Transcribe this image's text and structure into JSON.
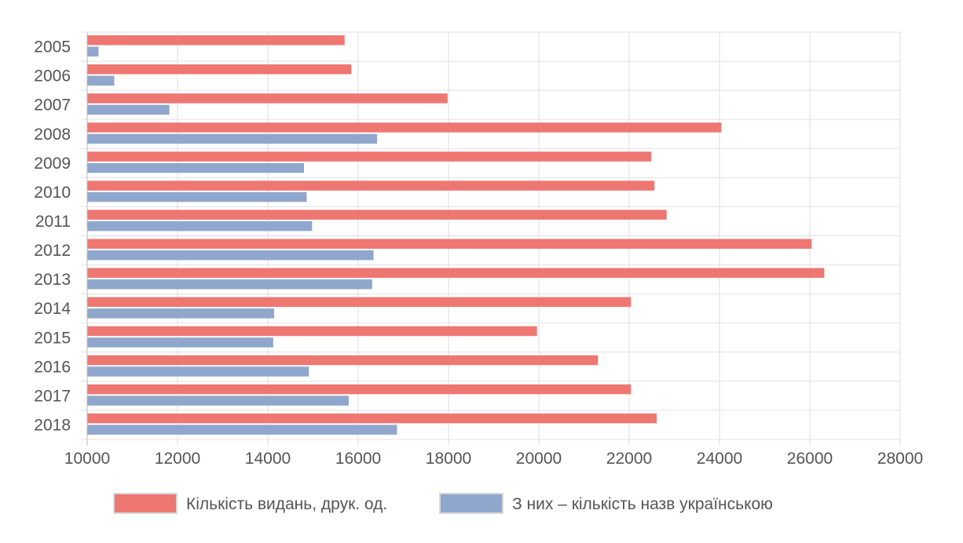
{
  "chart_data": {
    "type": "bar",
    "orientation": "horizontal",
    "categories": [
      "2005",
      "2006",
      "2007",
      "2008",
      "2009",
      "2010",
      "2011",
      "2012",
      "2013",
      "2014",
      "2015",
      "2016",
      "2017",
      "2018"
    ],
    "series": [
      {
        "name": "Кількість видань, друк. од.",
        "color": "#ee7772",
        "values": [
          15700,
          15850,
          17980,
          24040,
          22490,
          22560,
          22830,
          26040,
          26320,
          22040,
          19960,
          21310,
          22040,
          22610
        ]
      },
      {
        "name": "З них – кількість назв українською",
        "color": "#8fa7cc",
        "values": [
          10250,
          10600,
          11820,
          16420,
          14800,
          14860,
          14980,
          16340,
          16310,
          14140,
          14120,
          14910,
          15790,
          16860
        ]
      }
    ],
    "x_ticks": [
      "10000",
      "12000",
      "14000",
      "16000",
      "18000",
      "20000",
      "22000",
      "24000",
      "26000",
      "28000"
    ],
    "xlim": [
      10000,
      28000
    ],
    "grid": true,
    "legend": "bottom",
    "title": "",
    "xlabel": "",
    "ylabel": ""
  }
}
